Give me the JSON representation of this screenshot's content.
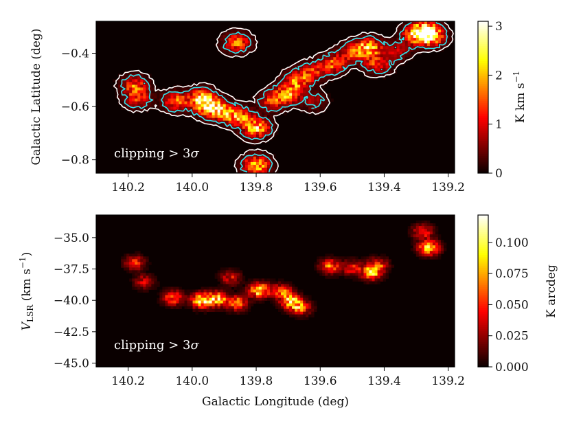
{
  "chart_data": [
    {
      "type": "heatmap",
      "panel": "top",
      "xlabel": "",
      "ylabel": "Galactic Latitude (deg)",
      "xlim": [
        140.3,
        139.18
      ],
      "ylim": [
        -0.85,
        -0.28
      ],
      "x_ticks": [
        140.2,
        140.0,
        139.8,
        139.6,
        139.4,
        139.2
      ],
      "x_tick_labels": [
        "140.2",
        "140.0",
        "139.8",
        "139.6",
        "139.4",
        "139.2"
      ],
      "y_ticks": [
        -0.4,
        -0.6,
        -0.8
      ],
      "y_tick_labels": [
        "−0.4",
        "−0.6",
        "−0.8"
      ],
      "annotation": "clipping > 3",
      "annotation_symbol": "σ",
      "colorbar": {
        "label": "K km s",
        "label_sup": "−1",
        "range": [
          0,
          3.1
        ],
        "ticks": [
          0,
          1,
          2,
          3
        ],
        "tick_labels": [
          "0",
          "1",
          "2",
          "3"
        ],
        "colormap": "hot"
      },
      "contour_colors": {
        "outer": "#ffffff",
        "inner": "#2ee6f0"
      },
      "blobs": [
        {
          "x": 140.18,
          "y": -0.52,
          "amp": 1.4
        },
        {
          "x": 140.17,
          "y": -0.57,
          "amp": 1.2
        },
        {
          "x": 140.05,
          "y": -0.58,
          "amp": 1.5
        },
        {
          "x": 139.95,
          "y": -0.6,
          "amp": 2.4
        },
        {
          "x": 139.97,
          "y": -0.57,
          "amp": 2.0
        },
        {
          "x": 139.9,
          "y": -0.62,
          "amp": 1.8
        },
        {
          "x": 139.85,
          "y": -0.64,
          "amp": 1.6
        },
        {
          "x": 139.8,
          "y": -0.68,
          "amp": 2.2
        },
        {
          "x": 139.86,
          "y": -0.36,
          "amp": 1.6
        },
        {
          "x": 139.8,
          "y": -0.82,
          "amp": 2.1
        },
        {
          "x": 139.75,
          "y": -0.58,
          "amp": 1.3
        },
        {
          "x": 139.7,
          "y": -0.55,
          "amp": 1.9
        },
        {
          "x": 139.67,
          "y": -0.5,
          "amp": 1.6
        },
        {
          "x": 139.62,
          "y": -0.47,
          "amp": 1.2
        },
        {
          "x": 139.56,
          "y": -0.44,
          "amp": 1.5
        },
        {
          "x": 139.5,
          "y": -0.4,
          "amp": 1.2
        },
        {
          "x": 139.45,
          "y": -0.38,
          "amp": 2.3
        },
        {
          "x": 139.42,
          "y": -0.44,
          "amp": 1.3
        },
        {
          "x": 139.3,
          "y": -0.33,
          "amp": 1.8
        },
        {
          "x": 139.27,
          "y": -0.32,
          "amp": 2.7
        },
        {
          "x": 139.25,
          "y": -0.34,
          "amp": 1.5
        },
        {
          "x": 139.36,
          "y": -0.39,
          "amp": 0.8
        },
        {
          "x": 139.62,
          "y": -0.58,
          "amp": 0.7
        }
      ]
    },
    {
      "type": "heatmap",
      "panel": "bottom",
      "xlabel": "Galactic Longitude (deg)",
      "ylabel": "V",
      "ylabel_sub": "LSR",
      "ylabel_unit": " (km s",
      "ylabel_unit_sup": "−1",
      "ylabel_close": ")",
      "xlim": [
        140.3,
        139.18
      ],
      "ylim": [
        -45.3,
        -33.2
      ],
      "x_ticks": [
        140.2,
        140.0,
        139.8,
        139.6,
        139.4,
        139.2
      ],
      "x_tick_labels": [
        "140.2",
        "140.0",
        "139.8",
        "139.6",
        "139.4",
        "139.2"
      ],
      "y_ticks": [
        -35.0,
        -37.5,
        -40.0,
        -42.5,
        -45.0
      ],
      "y_tick_labels": [
        "−35.0",
        "−37.5",
        "−40.0",
        "−42.5",
        "−45.0"
      ],
      "annotation": "clipping > 3",
      "annotation_symbol": "σ",
      "colorbar": {
        "label": "K arcdeg",
        "range": [
          0,
          0.122
        ],
        "ticks": [
          0,
          0.025,
          0.05,
          0.075,
          0.1
        ],
        "tick_labels": [
          "0.000",
          "0.025",
          "0.050",
          "0.075",
          "0.100"
        ],
        "colormap": "hot"
      },
      "blobs": [
        {
          "x": 140.18,
          "y": -37.0,
          "amp": 0.045
        },
        {
          "x": 140.15,
          "y": -38.5,
          "amp": 0.035
        },
        {
          "x": 140.06,
          "y": -39.8,
          "amp": 0.06
        },
        {
          "x": 139.97,
          "y": -40.0,
          "amp": 0.11
        },
        {
          "x": 139.92,
          "y": -39.9,
          "amp": 0.08
        },
        {
          "x": 139.88,
          "y": -38.2,
          "amp": 0.04
        },
        {
          "x": 139.86,
          "y": -40.2,
          "amp": 0.07
        },
        {
          "x": 139.79,
          "y": -39.2,
          "amp": 0.095
        },
        {
          "x": 139.72,
          "y": -39.3,
          "amp": 0.06
        },
        {
          "x": 139.69,
          "y": -40.1,
          "amp": 0.085
        },
        {
          "x": 139.66,
          "y": -40.6,
          "amp": 0.06
        },
        {
          "x": 139.57,
          "y": -37.3,
          "amp": 0.065
        },
        {
          "x": 139.5,
          "y": -37.4,
          "amp": 0.045
        },
        {
          "x": 139.44,
          "y": -37.8,
          "amp": 0.075
        },
        {
          "x": 139.42,
          "y": -37.2,
          "amp": 0.05
        },
        {
          "x": 139.28,
          "y": -34.5,
          "amp": 0.05
        },
        {
          "x": 139.26,
          "y": -35.8,
          "amp": 0.1
        }
      ]
    }
  ]
}
